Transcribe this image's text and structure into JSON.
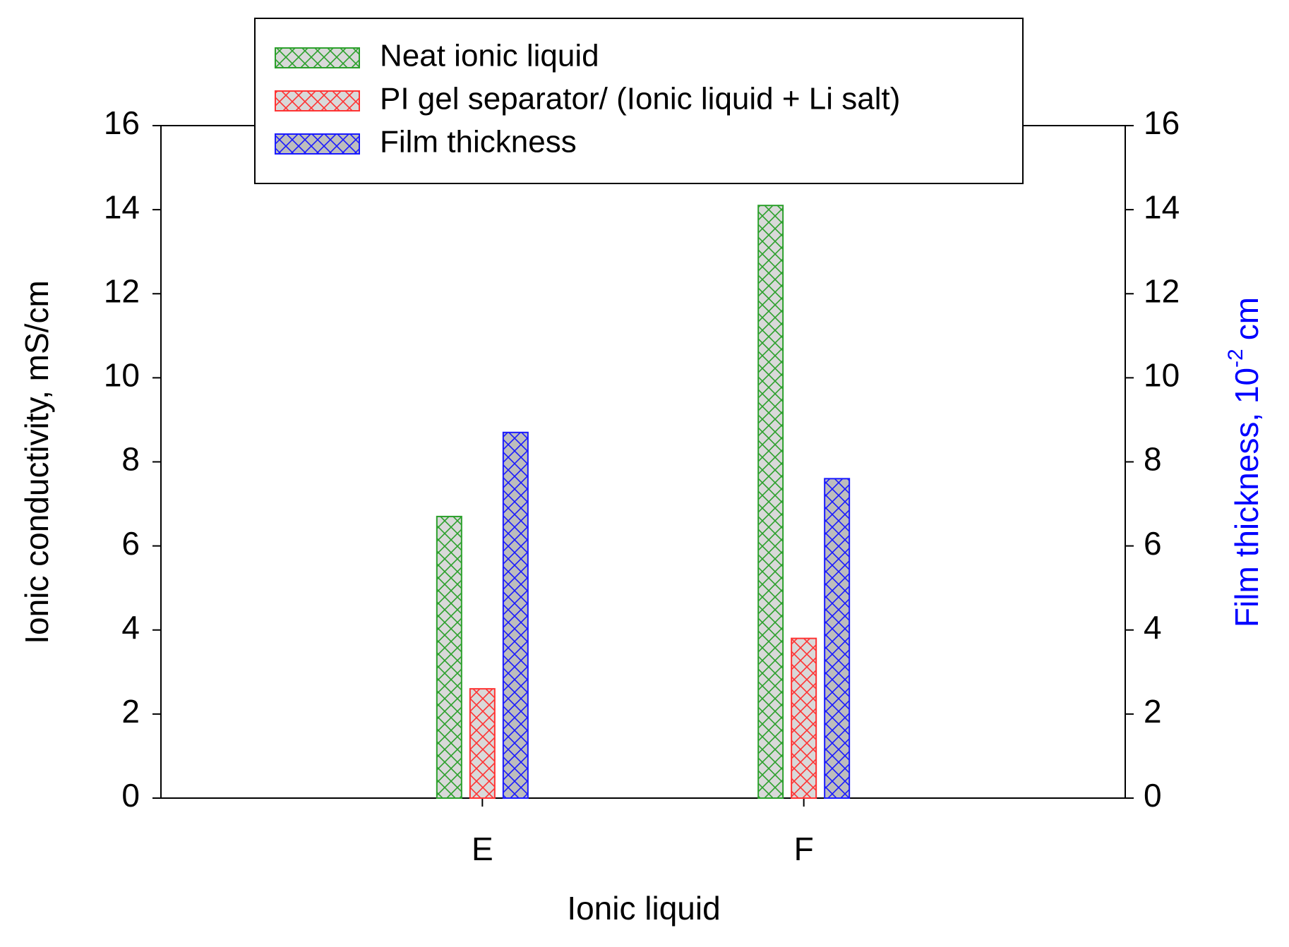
{
  "chart_data": {
    "type": "bar",
    "xlabel": "Ionic liquid",
    "ylabel": "Ionic conductivity, mS/cm",
    "y2label": {
      "text": "Film thickness, 10",
      "superscript": "-2",
      "unit": "cm",
      "color": "#0000ff"
    },
    "categories": [
      "E",
      "F"
    ],
    "series": [
      {
        "name": "Neat ionic liquid",
        "color": "#2ca02c",
        "fill": "#d9d9d9",
        "values": [
          6.7,
          14.1
        ]
      },
      {
        "name": "PI gel separator/ (Ionic liquid + Li salt)",
        "color": "#ff3333",
        "fill": "#d9d9d9",
        "values": [
          2.6,
          3.8
        ]
      },
      {
        "name": "Film thickness",
        "color": "#1a1aff",
        "fill": "#bdbdbd",
        "values": [
          8.7,
          7.6
        ],
        "axis": "y2"
      }
    ],
    "ylim": [
      0,
      16
    ],
    "yticks": [
      0,
      2,
      4,
      6,
      8,
      10,
      12,
      14,
      16
    ],
    "y2lim": [
      0,
      16
    ],
    "y2ticks": [
      0,
      2,
      4,
      6,
      8,
      10,
      12,
      14,
      16
    ],
    "grid": false,
    "legend": "top"
  }
}
